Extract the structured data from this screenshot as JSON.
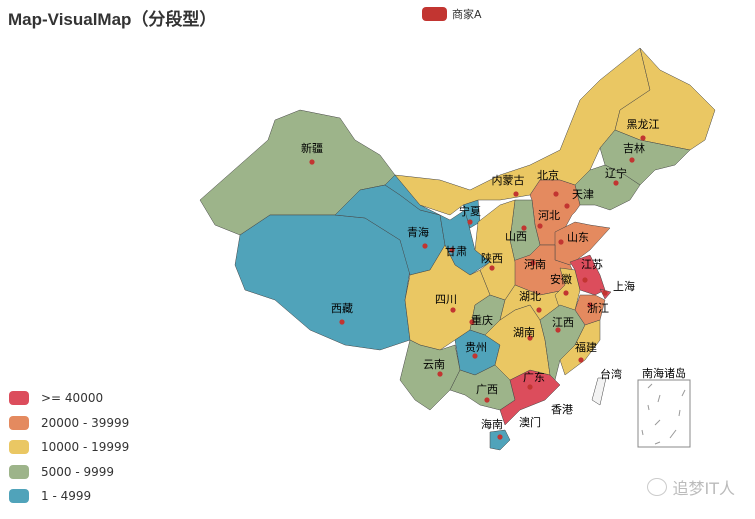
{
  "title": "Map-VisualMap（分段型）",
  "legend": {
    "label": "商家A",
    "color": "#c23531"
  },
  "watermark": "追梦IT人",
  "chart_data": {
    "type": "map",
    "map": "china",
    "series_name": "商家A",
    "pieces": [
      {
        "label": ">= 40000",
        "min": 40000,
        "color": "#dc4d5c"
      },
      {
        "label": "20000 - 39999",
        "min": 20000,
        "max": 39999,
        "color": "#e48a5f"
      },
      {
        "label": "10000 - 19999",
        "min": 10000,
        "max": 19999,
        "color": "#eac763"
      },
      {
        "label": "5000 - 9999",
        "min": 5000,
        "max": 9999,
        "color": "#9db48a"
      },
      {
        "label": "1 - 4999",
        "min": 1,
        "max": 4999,
        "color": "#50a3ba"
      }
    ],
    "regions": [
      {
        "name": "新疆",
        "piece": "5000 - 9999"
      },
      {
        "name": "西藏",
        "piece": "1 - 4999"
      },
      {
        "name": "青海",
        "piece": "1 - 4999"
      },
      {
        "name": "甘肃",
        "piece": "1 - 4999"
      },
      {
        "name": "宁夏",
        "piece": "1 - 4999"
      },
      {
        "name": "内蒙古",
        "piece": "10000 - 19999"
      },
      {
        "name": "黑龙江",
        "piece": "10000 - 19999"
      },
      {
        "name": "吉林",
        "piece": "5000 - 9999"
      },
      {
        "name": "辽宁",
        "piece": "5000 - 9999"
      },
      {
        "name": "北京",
        "piece": "20000 - 39999"
      },
      {
        "name": "天津",
        "piece": "5000 - 9999"
      },
      {
        "name": "河北",
        "piece": "20000 - 39999"
      },
      {
        "name": "山西",
        "piece": "5000 - 9999"
      },
      {
        "name": "山东",
        "piece": "20000 - 39999"
      },
      {
        "name": "河南",
        "piece": "20000 - 39999"
      },
      {
        "name": "陕西",
        "piece": "10000 - 19999"
      },
      {
        "name": "四川",
        "piece": "10000 - 19999"
      },
      {
        "name": "重庆",
        "piece": "5000 - 9999"
      },
      {
        "name": "云南",
        "piece": "5000 - 9999"
      },
      {
        "name": "贵州",
        "piece": "1 - 4999"
      },
      {
        "name": "广西",
        "piece": "5000 - 9999"
      },
      {
        "name": "广东",
        "piece": ">= 40000"
      },
      {
        "name": "海南",
        "piece": "1 - 4999"
      },
      {
        "name": "湖南",
        "piece": "10000 - 19999"
      },
      {
        "name": "湖北",
        "piece": "10000 - 19999"
      },
      {
        "name": "安徽",
        "piece": "10000 - 19999"
      },
      {
        "name": "江苏",
        "piece": ">= 40000"
      },
      {
        "name": "上海",
        "piece": ">= 40000"
      },
      {
        "name": "浙江",
        "piece": "20000 - 39999"
      },
      {
        "name": "江西",
        "piece": "5000 - 9999"
      },
      {
        "name": "福建",
        "piece": "10000 - 19999"
      },
      {
        "name": "台湾",
        "piece": null
      },
      {
        "name": "香港",
        "piece": null
      },
      {
        "name": "澳门",
        "piece": null
      },
      {
        "name": "南海诸岛",
        "piece": null
      }
    ]
  }
}
